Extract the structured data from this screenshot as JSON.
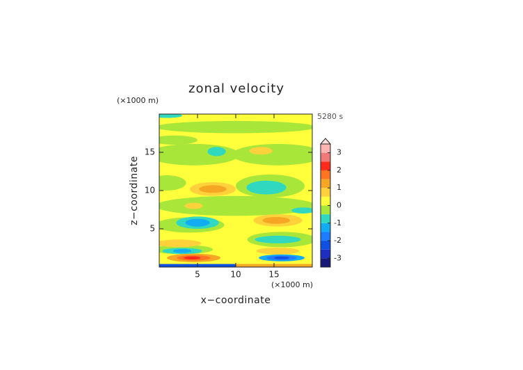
{
  "chart_data": {
    "type": "contour",
    "title": "zonal velocity",
    "xlabel": "x−coordinate",
    "ylabel": "z−coordinate",
    "x_unit": "(×1000 m)",
    "y_unit": "(×1000 m)",
    "time_label": "5280 s",
    "xlim": [
      0,
      20
    ],
    "ylim": [
      0,
      20
    ],
    "xticks": [
      5,
      10,
      15
    ],
    "yticks": [
      5,
      10,
      15
    ],
    "colorbar": {
      "levels": [
        -3.5,
        -3,
        -2.5,
        -2,
        -1.5,
        -1,
        -0.5,
        0,
        0.5,
        1,
        1.5,
        2,
        2.5,
        3,
        3.5
      ],
      "colors": [
        "#18187a",
        "#1e2ec0",
        "#1050e0",
        "#1e7cff",
        "#12acf2",
        "#30d8c0",
        "#a8e63a",
        "#ffff3c",
        "#ffd23c",
        "#f5a623",
        "#ff7420",
        "#ff2a1a",
        "#f07a7a",
        "#ffb4b4"
      ],
      "extend_color": "#ffdede",
      "ticks": [
        -3,
        -2,
        -1,
        0,
        1,
        2,
        3
      ]
    },
    "regions": [
      {
        "shape": "rect",
        "x": 10,
        "z": 10,
        "rx": 10,
        "rz": 10,
        "value": 0.25
      },
      {
        "shape": "ellipse",
        "x": 10,
        "z": 18.3,
        "rx": 10.5,
        "rz": 0.8,
        "value": -0.25
      },
      {
        "shape": "ellipse",
        "x": 2,
        "z": 16.6,
        "rx": 3,
        "rz": 0.6,
        "value": -0.25
      },
      {
        "shape": "ellipse",
        "x": 4.5,
        "z": 14.7,
        "rx": 6,
        "rz": 1.4,
        "value": -0.25
      },
      {
        "shape": "ellipse",
        "x": 15.5,
        "z": 14.7,
        "rx": 6,
        "rz": 1.4,
        "value": -0.25
      },
      {
        "shape": "ellipse",
        "x": 1,
        "z": 11,
        "rx": 2.5,
        "rz": 1,
        "value": -0.25
      },
      {
        "shape": "ellipse",
        "x": 14.5,
        "z": 10.6,
        "rx": 4.5,
        "rz": 1.5,
        "value": -0.25
      },
      {
        "shape": "ellipse",
        "x": 10,
        "z": 8,
        "rx": 10.5,
        "rz": 1.3,
        "value": -0.25
      },
      {
        "shape": "ellipse",
        "x": 4,
        "z": 5.5,
        "rx": 4.5,
        "rz": 1,
        "value": -0.25
      },
      {
        "shape": "ellipse",
        "x": 16,
        "z": 3.6,
        "rx": 4.5,
        "rz": 1,
        "value": -0.25
      },
      {
        "shape": "ellipse",
        "x": 3,
        "z": 2.3,
        "rx": 4,
        "rz": 0.6,
        "value": -0.25
      },
      {
        "shape": "ellipse",
        "x": 7.5,
        "z": 15.1,
        "rx": 1.2,
        "rz": 0.6,
        "value": -0.75
      },
      {
        "shape": "ellipse",
        "x": 14,
        "z": 10.4,
        "rx": 2.6,
        "rz": 0.9,
        "value": -0.75
      },
      {
        "shape": "ellipse",
        "x": 1,
        "z": 19.8,
        "rx": 2,
        "rz": 0.3,
        "value": -0.75
      },
      {
        "shape": "ellipse",
        "x": 18.8,
        "z": 7.4,
        "rx": 1.5,
        "rz": 0.4,
        "value": -0.75
      },
      {
        "shape": "ellipse",
        "x": 5,
        "z": 5.8,
        "rx": 2.8,
        "rz": 0.8,
        "value": -0.75
      },
      {
        "shape": "ellipse",
        "x": 5,
        "z": 5.8,
        "rx": 1.6,
        "rz": 0.5,
        "value": -1.25
      },
      {
        "shape": "ellipse",
        "x": 15.5,
        "z": 3.6,
        "rx": 3,
        "rz": 0.5,
        "value": -0.75
      },
      {
        "shape": "ellipse",
        "x": 3,
        "z": 2.1,
        "rx": 2.6,
        "rz": 0.4,
        "value": -0.75
      },
      {
        "shape": "ellipse",
        "x": 3,
        "z": 2.1,
        "rx": 1.2,
        "rz": 0.25,
        "value": -1.25
      },
      {
        "shape": "ellipse",
        "x": 7,
        "z": 10.2,
        "rx": 3,
        "rz": 0.9,
        "value": 0.75
      },
      {
        "shape": "ellipse",
        "x": 7,
        "z": 10.2,
        "rx": 1.8,
        "rz": 0.5,
        "value": 1.25
      },
      {
        "shape": "ellipse",
        "x": 13.3,
        "z": 15.2,
        "rx": 1.5,
        "rz": 0.5,
        "value": 0.75
      },
      {
        "shape": "ellipse",
        "x": 4.5,
        "z": 8,
        "rx": 1.2,
        "rz": 0.4,
        "value": 0.75
      },
      {
        "shape": "ellipse",
        "x": 15.5,
        "z": 6.1,
        "rx": 3.2,
        "rz": 0.8,
        "value": 0.75
      },
      {
        "shape": "ellipse",
        "x": 15.3,
        "z": 6.1,
        "rx": 1.8,
        "rz": 0.45,
        "value": 1.25
      },
      {
        "shape": "ellipse",
        "x": 2.5,
        "z": 3.1,
        "rx": 3,
        "rz": 0.5,
        "value": 0.75
      },
      {
        "shape": "ellipse",
        "x": 15.5,
        "z": 2.1,
        "rx": 2.8,
        "rz": 0.45,
        "value": 0.75
      },
      {
        "shape": "ellipse",
        "x": 4.5,
        "z": 1.2,
        "rx": 3.5,
        "rz": 0.55,
        "value": 1.25
      },
      {
        "shape": "ellipse",
        "x": 4.5,
        "z": 1.2,
        "rx": 2.2,
        "rz": 0.35,
        "value": 1.75
      },
      {
        "shape": "ellipse",
        "x": 4.3,
        "z": 1.2,
        "rx": 1.1,
        "rz": 0.2,
        "value": 2.25
      },
      {
        "shape": "ellipse",
        "x": 16,
        "z": 1.2,
        "rx": 3,
        "rz": 0.45,
        "value": -1.25
      },
      {
        "shape": "ellipse",
        "x": 16,
        "z": 1.2,
        "rx": 2,
        "rz": 0.3,
        "value": -1.75
      },
      {
        "shape": "ellipse",
        "x": 16,
        "z": 1.2,
        "rx": 1,
        "rz": 0.18,
        "value": -2.25
      },
      {
        "shape": "rect",
        "x": 5,
        "z": 0.2,
        "rx": 5,
        "rz": 0.2,
        "value": -2.25
      },
      {
        "shape": "rect",
        "x": 15,
        "z": 0.2,
        "rx": 5,
        "rz": 0.2,
        "value": 1.25
      }
    ]
  }
}
